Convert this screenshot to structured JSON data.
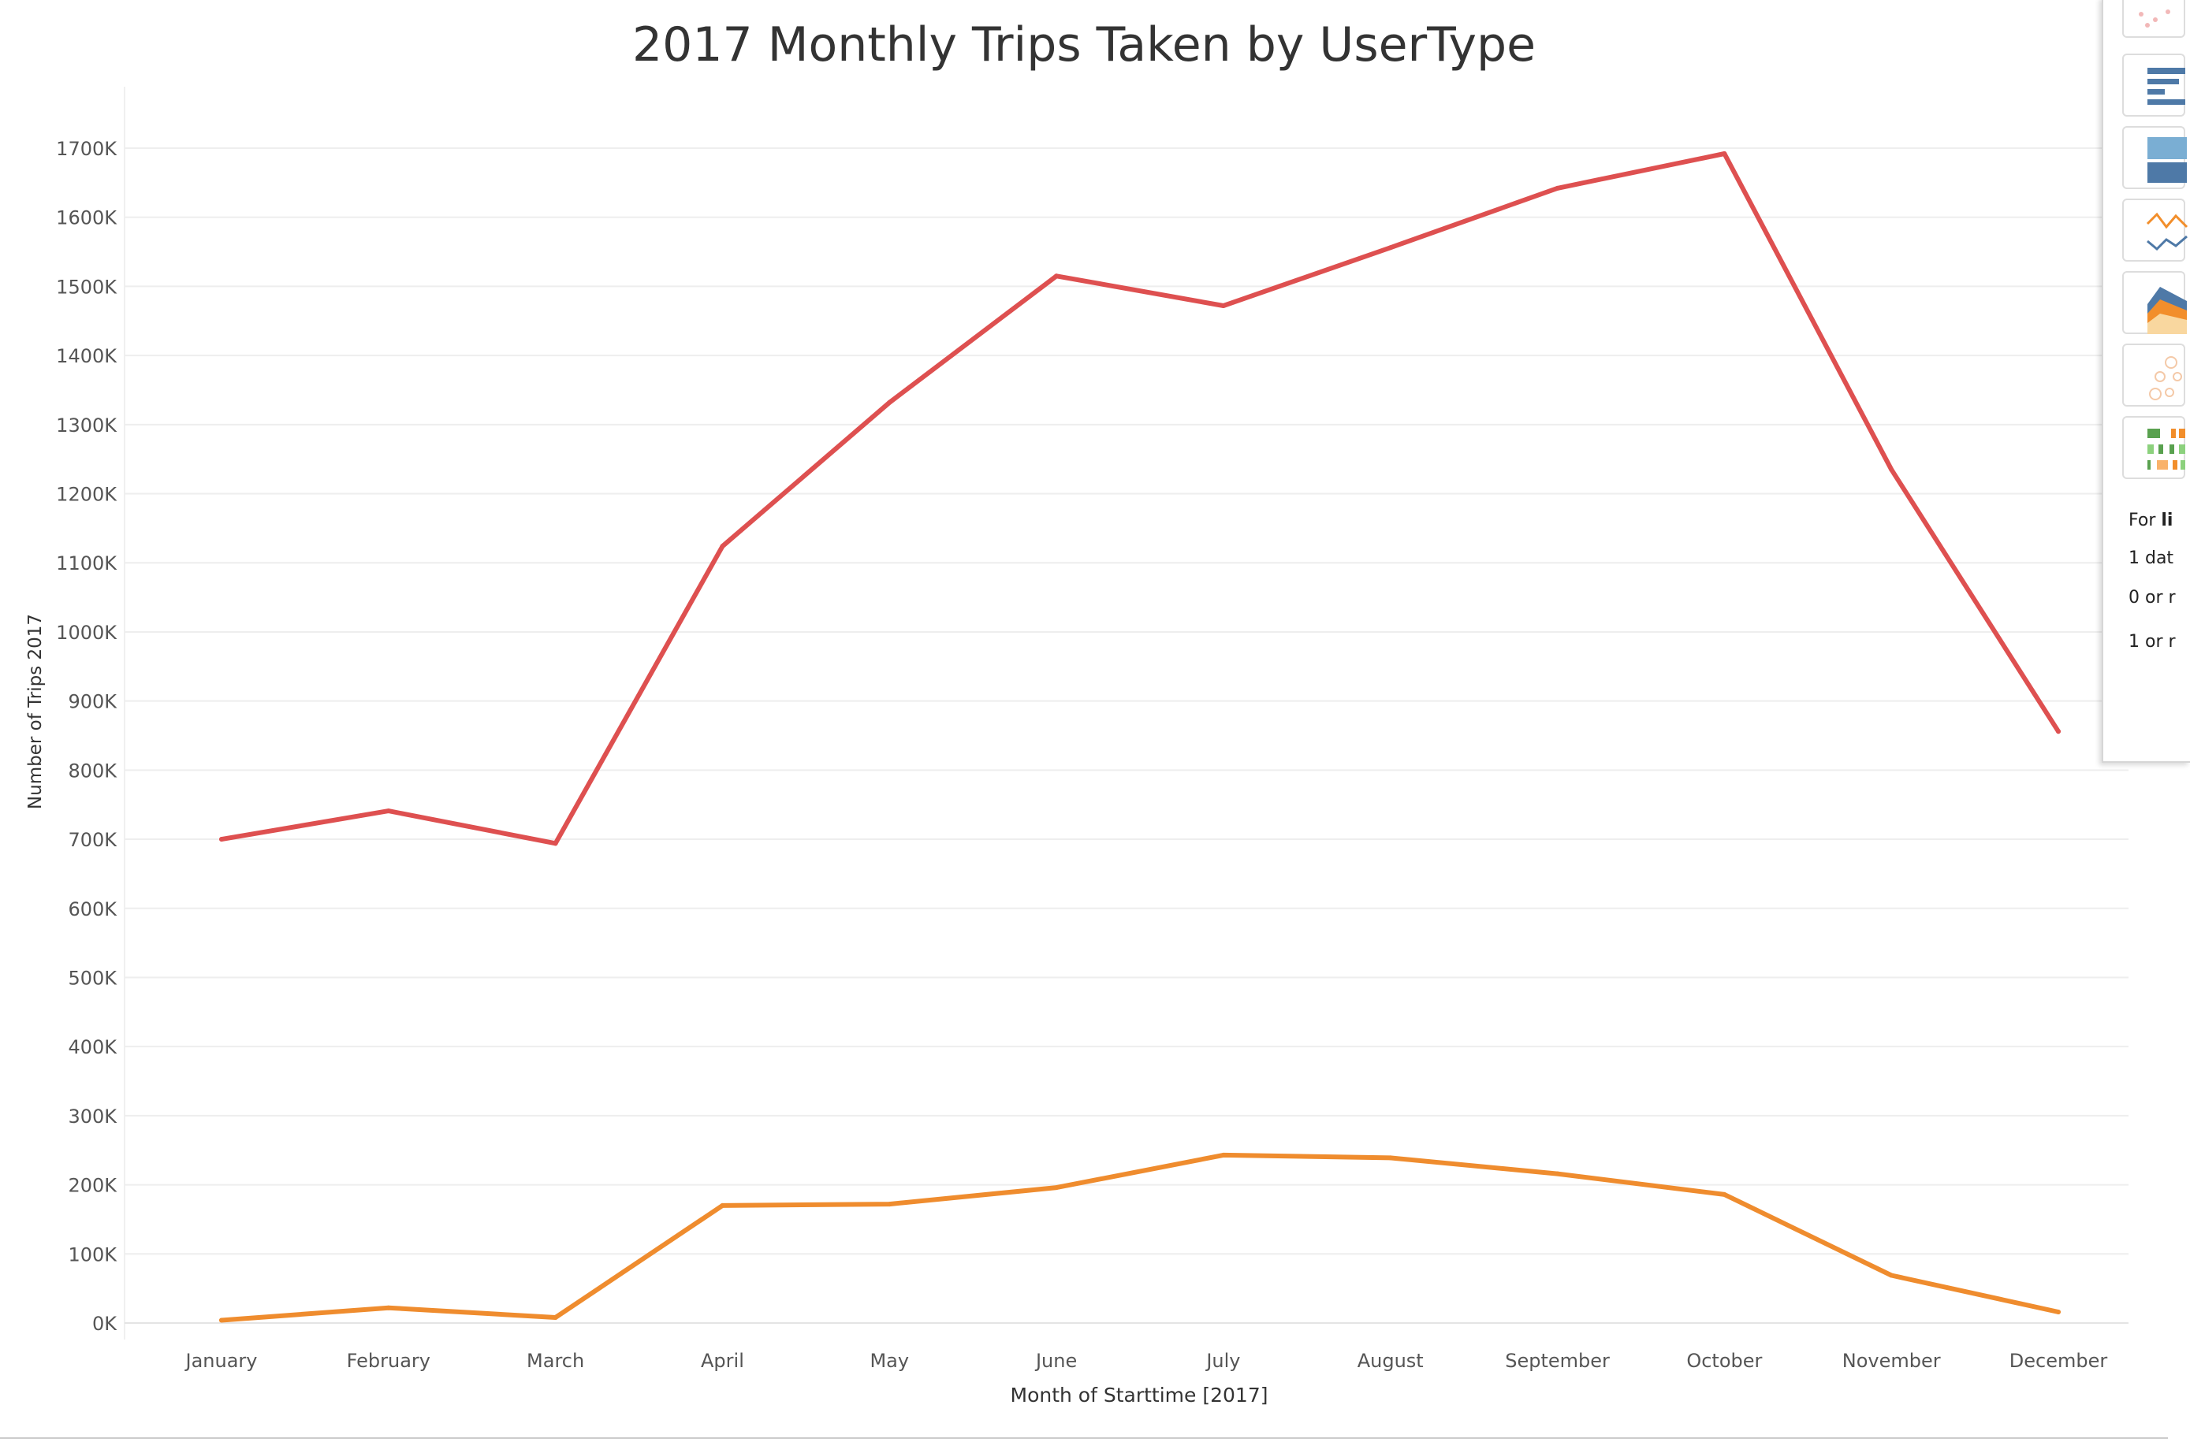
{
  "chart_data": {
    "type": "line",
    "title": "2017 Monthly Trips Taken by UserType",
    "xlabel": "Month of Starttime [2017]",
    "ylabel": "Number of Trips 2017",
    "categories": [
      "January",
      "February",
      "March",
      "April",
      "May",
      "June",
      "July",
      "August",
      "September",
      "October",
      "November",
      "December"
    ],
    "y_ticks": [
      "0K",
      "100K",
      "200K",
      "300K",
      "400K",
      "500K",
      "600K",
      "700K",
      "800K",
      "900K",
      "1000K",
      "1100K",
      "1200K",
      "1300K",
      "1400K",
      "1500K",
      "1600K",
      "1700K"
    ],
    "ylim": [
      0,
      1700000
    ],
    "grid": true,
    "legend": "none",
    "series": [
      {
        "color": "#de5050",
        "values": [
          700000,
          741000,
          694000,
          1124000,
          1332000,
          1515000,
          1472000,
          1556000,
          1642000,
          1692000,
          1235000,
          856000
        ]
      },
      {
        "color": "#ef8c2e",
        "values": [
          4000,
          22000,
          8000,
          170000,
          172000,
          196000,
          243000,
          239000,
          216000,
          186000,
          69000,
          16000
        ]
      }
    ]
  },
  "side_panel": {
    "icons": [
      "circle-views-icon",
      "horizontal-bars-icon",
      "stacked-bars-icon",
      "line-continuous-icon",
      "area-continuous-icon",
      "packed-bubbles-icon",
      "gantt-bars-icon"
    ],
    "line1_prefix": "For ",
    "line1_bold": "li",
    "line2": "1 dat",
    "line3": "0 or r",
    "line4": "1 or r"
  }
}
